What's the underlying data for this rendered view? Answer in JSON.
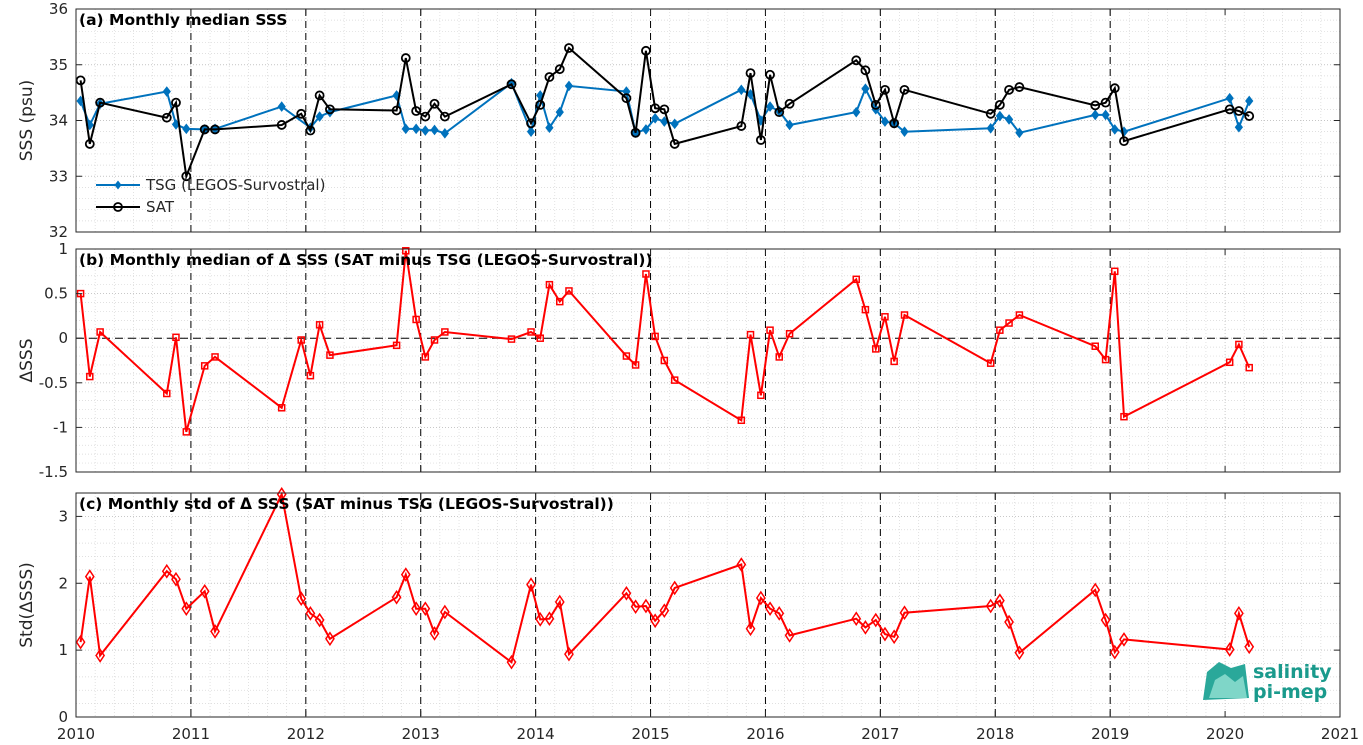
{
  "chart_data": [
    {
      "type": "line",
      "title": "(a) Monthly median SSS",
      "xlabel": "",
      "ylabel": "SSS (psu)",
      "xlim": [
        2010,
        2021
      ],
      "ylim": [
        32,
        36
      ],
      "xticks": [
        "2010",
        "2011",
        "2012",
        "2013",
        "2014",
        "2015",
        "2016",
        "2017",
        "2018",
        "2019",
        "2020",
        "2021"
      ],
      "yticks": [
        "32",
        "33",
        "34",
        "35",
        "36"
      ],
      "grid": true,
      "legend": "left",
      "series": [
        {
          "name": "TSG (LEGOS-Survostral)",
          "color": "#0072BD",
          "marker": "diamond-filled",
          "x": [
            2010.04,
            2010.12,
            2010.21,
            2010.79,
            2010.87,
            2010.96,
            2011.12,
            2011.21,
            2011.79,
            2012.04,
            2012.12,
            2012.21,
            2012.79,
            2012.87,
            2012.96,
            2013.04,
            2013.12,
            2013.21,
            2013.79,
            2013.96,
            2014.04,
            2014.12,
            2014.21,
            2014.29,
            2014.79,
            2014.87,
            2014.96,
            2015.04,
            2015.12,
            2015.21,
            2015.79,
            2015.87,
            2015.96,
            2016.04,
            2016.12,
            2016.21,
            2016.79,
            2016.87,
            2016.96,
            2017.04,
            2017.12,
            2017.21,
            2017.96,
            2018.04,
            2018.12,
            2018.21,
            2018.87,
            2018.96,
            2019.04,
            2019.12,
            2020.04,
            2020.12,
            2020.21
          ],
          "values": [
            34.35,
            33.92,
            34.3,
            34.52,
            33.93,
            33.85,
            33.84,
            33.85,
            34.25,
            33.87,
            34.07,
            34.15,
            34.45,
            33.85,
            33.85,
            33.82,
            33.83,
            33.77,
            34.67,
            33.8,
            34.45,
            33.87,
            34.15,
            34.62,
            34.52,
            33.78,
            33.84,
            34.04,
            33.98,
            33.94,
            34.55,
            34.47,
            34.0,
            34.25,
            34.17,
            33.92,
            34.15,
            34.57,
            34.2,
            33.98,
            33.95,
            33.8,
            33.86,
            34.08,
            34.02,
            33.78,
            34.1,
            34.1,
            33.84,
            33.8,
            34.4,
            33.88,
            34.35
          ]
        },
        {
          "name": "SAT",
          "color": "#000000",
          "marker": "circle-open",
          "x": [
            2010.04,
            2010.12,
            2010.21,
            2010.79,
            2010.87,
            2010.96,
            2011.12,
            2011.21,
            2011.79,
            2011.96,
            2012.04,
            2012.12,
            2012.21,
            2012.79,
            2012.87,
            2012.96,
            2013.04,
            2013.12,
            2013.21,
            2013.79,
            2013.96,
            2014.04,
            2014.12,
            2014.21,
            2014.29,
            2014.79,
            2014.87,
            2014.96,
            2015.04,
            2015.12,
            2015.21,
            2015.79,
            2015.87,
            2015.96,
            2016.04,
            2016.12,
            2016.21,
            2016.79,
            2016.87,
            2016.96,
            2017.04,
            2017.12,
            2017.21,
            2017.96,
            2018.04,
            2018.12,
            2018.21,
            2018.87,
            2018.96,
            2019.04,
            2019.12,
            2020.04,
            2020.12,
            2020.21
          ],
          "values": [
            34.72,
            33.58,
            34.32,
            34.05,
            34.32,
            33.0,
            33.84,
            33.84,
            33.92,
            34.12,
            33.82,
            34.45,
            34.2,
            34.18,
            35.12,
            34.17,
            34.07,
            34.3,
            34.07,
            34.65,
            33.95,
            34.28,
            34.78,
            34.92,
            35.3,
            34.4,
            33.78,
            35.25,
            34.22,
            34.2,
            33.58,
            33.9,
            34.85,
            33.65,
            34.82,
            34.15,
            34.3,
            35.08,
            34.9,
            34.28,
            34.55,
            33.95,
            34.55,
            34.12,
            34.28,
            34.55,
            34.6,
            34.27,
            34.32,
            34.58,
            33.63,
            34.2,
            34.17,
            34.08
          ]
        }
      ]
    },
    {
      "type": "line",
      "title": "(b) Monthly median of Δ SSS (SAT minus TSG (LEGOS-Survostral))",
      "xlabel": "",
      "ylabel": "ΔSSS",
      "xlim": [
        2010,
        2021
      ],
      "ylim": [
        -1.5,
        1
      ],
      "xticks": [
        "2010",
        "2011",
        "2012",
        "2013",
        "2014",
        "2015",
        "2016",
        "2017",
        "2018",
        "2019",
        "2020",
        "2021"
      ],
      "yticks": [
        "-1.5",
        "-1",
        "-0.5",
        "0",
        "0.5",
        "1"
      ],
      "grid": true,
      "reference_line": 0,
      "series": [
        {
          "color": "#FF0000",
          "marker": "square-open",
          "x": [
            2010.04,
            2010.12,
            2010.21,
            2010.79,
            2010.87,
            2010.96,
            2011.12,
            2011.21,
            2011.79,
            2011.96,
            2012.04,
            2012.12,
            2012.21,
            2012.79,
            2012.87,
            2012.96,
            2013.04,
            2013.12,
            2013.21,
            2013.79,
            2013.96,
            2014.04,
            2014.12,
            2014.21,
            2014.29,
            2014.79,
            2014.87,
            2014.96,
            2015.04,
            2015.12,
            2015.21,
            2015.79,
            2015.87,
            2015.96,
            2016.04,
            2016.12,
            2016.21,
            2016.79,
            2016.87,
            2016.96,
            2017.04,
            2017.12,
            2017.21,
            2017.96,
            2018.04,
            2018.12,
            2018.21,
            2018.87,
            2018.96,
            2019.04,
            2019.12,
            2020.04,
            2020.12,
            2020.21
          ],
          "values": [
            0.5,
            -0.43,
            0.07,
            -0.62,
            0.01,
            -1.05,
            -0.31,
            -0.21,
            -0.78,
            -0.02,
            -0.42,
            0.15,
            -0.19,
            -0.08,
            0.98,
            0.21,
            -0.21,
            -0.02,
            0.07,
            -0.01,
            0.07,
            0.0,
            0.6,
            0.41,
            0.53,
            -0.2,
            -0.3,
            0.72,
            0.02,
            -0.25,
            -0.47,
            -0.92,
            0.04,
            -0.64,
            0.09,
            -0.21,
            0.05,
            0.66,
            0.32,
            -0.12,
            0.24,
            -0.26,
            0.26,
            -0.28,
            0.09,
            0.17,
            0.26,
            -0.09,
            -0.24,
            0.75,
            -0.88,
            -0.27,
            -0.07,
            -0.33
          ]
        }
      ]
    },
    {
      "type": "line",
      "title": "(c) Monthly std of Δ SSS (SAT minus TSG (LEGOS-Survostral))",
      "xlabel": "",
      "ylabel": "Std(ΔSSS)",
      "xlim": [
        2010,
        2021
      ],
      "ylim": [
        0,
        3.35
      ],
      "xticks": [
        "2010",
        "2011",
        "2012",
        "2013",
        "2014",
        "2015",
        "2016",
        "2017",
        "2018",
        "2019",
        "2020",
        "2021"
      ],
      "yticks": [
        "0",
        "1",
        "2",
        "3"
      ],
      "grid": true,
      "series": [
        {
          "color": "#FF0000",
          "marker": "diamond-open",
          "x": [
            2010.04,
            2010.12,
            2010.21,
            2010.79,
            2010.87,
            2010.96,
            2011.12,
            2011.21,
            2011.79,
            2011.96,
            2012.04,
            2012.12,
            2012.21,
            2012.79,
            2012.87,
            2012.96,
            2013.04,
            2013.12,
            2013.21,
            2013.79,
            2013.96,
            2014.04,
            2014.12,
            2014.21,
            2014.29,
            2014.79,
            2014.87,
            2014.96,
            2015.04,
            2015.12,
            2015.21,
            2015.79,
            2015.87,
            2015.96,
            2016.04,
            2016.12,
            2016.21,
            2016.79,
            2016.87,
            2016.96,
            2017.04,
            2017.12,
            2017.21,
            2017.96,
            2018.04,
            2018.12,
            2018.21,
            2018.87,
            2018.96,
            2019.04,
            2019.12,
            2020.04,
            2020.12,
            2020.21
          ],
          "values": [
            1.12,
            2.1,
            0.92,
            2.18,
            2.06,
            1.62,
            1.88,
            1.28,
            3.33,
            1.77,
            1.55,
            1.45,
            1.17,
            1.79,
            2.13,
            1.62,
            1.62,
            1.25,
            1.57,
            0.82,
            1.98,
            1.46,
            1.47,
            1.72,
            0.94,
            1.85,
            1.65,
            1.66,
            1.44,
            1.59,
            1.93,
            2.28,
            1.32,
            1.78,
            1.62,
            1.55,
            1.22,
            1.47,
            1.34,
            1.45,
            1.24,
            1.2,
            1.56,
            1.66,
            1.74,
            1.42,
            0.96,
            1.9,
            1.45,
            0.97,
            1.16,
            1.01,
            1.55,
            1.05
          ]
        }
      ]
    }
  ],
  "logo": {
    "line1": "salinity",
    "line2": "pi-mep"
  }
}
